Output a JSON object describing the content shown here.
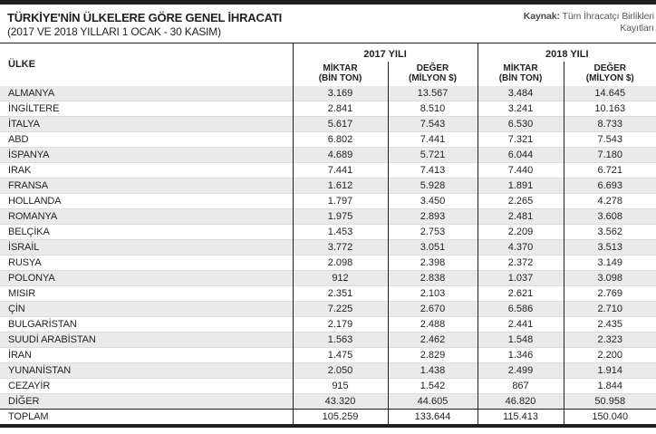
{
  "chart_data": {
    "type": "table",
    "title": "TÜRKİYE'NİN ÜLKELERE GÖRE GENEL İHRACATI",
    "subtitle": "(2017 VE 2018 YILLARI 1 OCAK - 30 KASIM)",
    "source_label": "Kaynak:",
    "source_text": "Tüm İhracatçı Birlikleri Kayıtları",
    "country_header": "ÜLKE",
    "year_groups": [
      "2017 YILI",
      "2018 YILI"
    ],
    "sub_headers": [
      {
        "top": "MİKTAR",
        "bottom": "(BİN TON)"
      },
      {
        "top": "DEĞER",
        "bottom": "(MİLYON $)"
      },
      {
        "top": "MİKTAR",
        "bottom": "(BİN TON)"
      },
      {
        "top": "DEĞER",
        "bottom": "(MİLYON $)"
      }
    ],
    "rows": [
      {
        "country": "ALMANYA",
        "values": [
          "3.169",
          "13.567",
          "3.484",
          "14.645"
        ]
      },
      {
        "country": "İNGİLTERE",
        "values": [
          "2.841",
          "8.510",
          "3.241",
          "10.163"
        ]
      },
      {
        "country": "İTALYA",
        "values": [
          "5.617",
          "7.543",
          "6.530",
          "8.733"
        ]
      },
      {
        "country": "ABD",
        "values": [
          "6.802",
          "7.441",
          "7.321",
          "7.543"
        ]
      },
      {
        "country": "İSPANYA",
        "values": [
          "4.689",
          "5.721",
          "6.044",
          "7.180"
        ]
      },
      {
        "country": "IRAK",
        "values": [
          "7.441",
          "7.413",
          "7.440",
          "6.721"
        ]
      },
      {
        "country": "FRANSA",
        "values": [
          "1.612",
          "5.928",
          "1.891",
          "6.693"
        ]
      },
      {
        "country": "HOLLANDA",
        "values": [
          "1.797",
          "3.450",
          "2.265",
          "4.278"
        ]
      },
      {
        "country": "ROMANYA",
        "values": [
          "1.975",
          "2.893",
          "2.481",
          "3.608"
        ]
      },
      {
        "country": "BELÇİKA",
        "values": [
          "1.453",
          "2.753",
          "2.209",
          "3.562"
        ]
      },
      {
        "country": "İSRAİL",
        "values": [
          "3.772",
          "3.051",
          "4.370",
          "3.513"
        ]
      },
      {
        "country": "RUSYA",
        "values": [
          "2.098",
          "2.398",
          "2.372",
          "3.149"
        ]
      },
      {
        "country": "POLONYA",
        "values": [
          "912",
          "2.838",
          "1.037",
          "3.098"
        ]
      },
      {
        "country": "MISIR",
        "values": [
          "2.351",
          "2.103",
          "2.621",
          "2.769"
        ]
      },
      {
        "country": "ÇİN",
        "values": [
          "7.225",
          "2.670",
          "6.586",
          "2.710"
        ]
      },
      {
        "country": "BULGARİSTAN",
        "values": [
          "2.179",
          "2.488",
          "2.441",
          "2.435"
        ]
      },
      {
        "country": "SUUDİ ARABİSTAN",
        "values": [
          "1.563",
          "2.462",
          "1.548",
          "2.323"
        ]
      },
      {
        "country": "İRAN",
        "values": [
          "1.475",
          "2.829",
          "1.346",
          "2.200"
        ]
      },
      {
        "country": "YUNANİSTAN",
        "values": [
          "2.050",
          "1.438",
          "2.499",
          "1.914"
        ]
      },
      {
        "country": "CEZAYİR",
        "values": [
          "915",
          "1.542",
          "867",
          "1.844"
        ]
      },
      {
        "country": "DİĞER",
        "values": [
          "43.320",
          "44.605",
          "46.820",
          "50.958"
        ]
      },
      {
        "country": "TOPLAM",
        "values": [
          "105.259",
          "133.644",
          "115.413",
          "150.040"
        ]
      }
    ]
  },
  "colors": {
    "bar_black": "#231f20",
    "stripe_gray": "#eaeaea",
    "row_border_gray": "#dcdcdc",
    "source_text_gray": "#58585a"
  }
}
